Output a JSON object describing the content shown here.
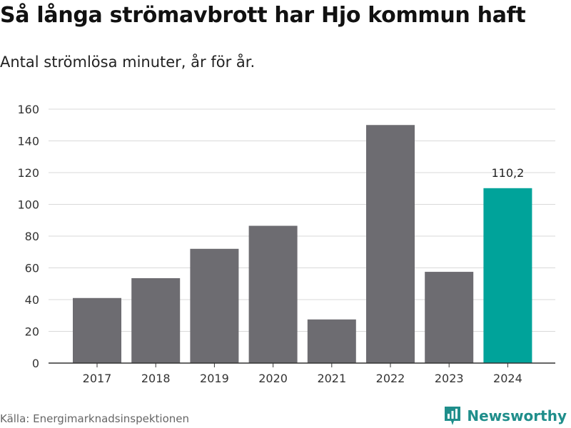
{
  "header": {
    "title": "Så långa strömavbrott har Hjo kommun haft",
    "subtitle": "Antal strömlösa minuter, år för år."
  },
  "footer": {
    "source": "Källa: Energimarknadsinspektionen",
    "brand": "Newsworthy",
    "brand_icon": "newsworthy-logo-icon"
  },
  "colors": {
    "bar": "#6d6c71",
    "highlight": "#00a39a",
    "grid": "#d9d9d9",
    "axis": "#333333",
    "brand": "#1f8e8b"
  },
  "chart_data": {
    "type": "bar",
    "title": "Så långa strömavbrott har Hjo kommun haft",
    "subtitle": "Antal strömlösa minuter, år för år.",
    "xlabel": "",
    "ylabel": "",
    "categories": [
      "2017",
      "2018",
      "2019",
      "2020",
      "2021",
      "2022",
      "2023",
      "2024"
    ],
    "values": [
      41,
      53.5,
      72,
      86.5,
      27.5,
      150,
      57.5,
      110.2
    ],
    "highlight_index": 7,
    "data_labels": [
      {
        "index": 7,
        "text": "110,2"
      }
    ],
    "ylim": [
      0,
      160
    ],
    "yticks": [
      0,
      20,
      40,
      60,
      80,
      100,
      120,
      140,
      160
    ],
    "grid": true,
    "legend": "none"
  }
}
